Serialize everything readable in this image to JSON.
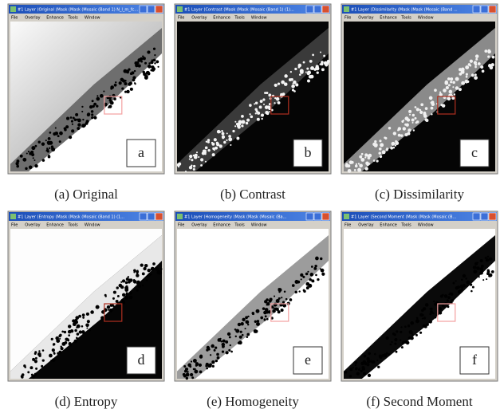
{
  "panels": [
    {
      "window_title": "#1 Layer (Original (Mask (Mask (Mosaic (Band 1) N_l_m_fc...",
      "menu": [
        "File",
        "Overlay",
        "Enhance",
        "Tools",
        "Window"
      ],
      "letter": "a",
      "caption": "(a) Original"
    },
    {
      "window_title": "#1 Layer (Contrast (Mask (Mask (Mosaic (Band 1) (1)...",
      "menu": [
        "File",
        "Overlay",
        "Enhance",
        "Tools",
        "Window"
      ],
      "letter": "b",
      "caption": "(b) Contrast"
    },
    {
      "window_title": "#1 Layer (Dissimilarity (Mask (Mask (Mosaic (Band ...",
      "menu": [
        "File",
        "Overlay",
        "Enhance",
        "Tools",
        "Window"
      ],
      "letter": "c",
      "caption": "(c) Dissimilarity"
    },
    {
      "window_title": "#1 Layer (Entropy (Mask (Mask (Mosaic (Band 1) (1...",
      "menu": [
        "File",
        "Overlay",
        "Enhance",
        "Tools",
        "Window"
      ],
      "letter": "d",
      "caption": "(d) Entropy"
    },
    {
      "window_title": "#1 Layer (Homogeneity (Mask (Mask (Mosaic (Ba...",
      "menu": [
        "File",
        "Overlay",
        "Enhance",
        "Tools",
        "Window"
      ],
      "letter": "e",
      "caption": "(e) Homogeneity"
    },
    {
      "window_title": "#1 Layer (Second Moment (Mask (Mask (Mosaic (B...",
      "menu": [
        "File",
        "Overlay",
        "Enhance",
        "Tools",
        "Window"
      ],
      "letter": "f",
      "caption": "(f) Second Moment"
    }
  ]
}
